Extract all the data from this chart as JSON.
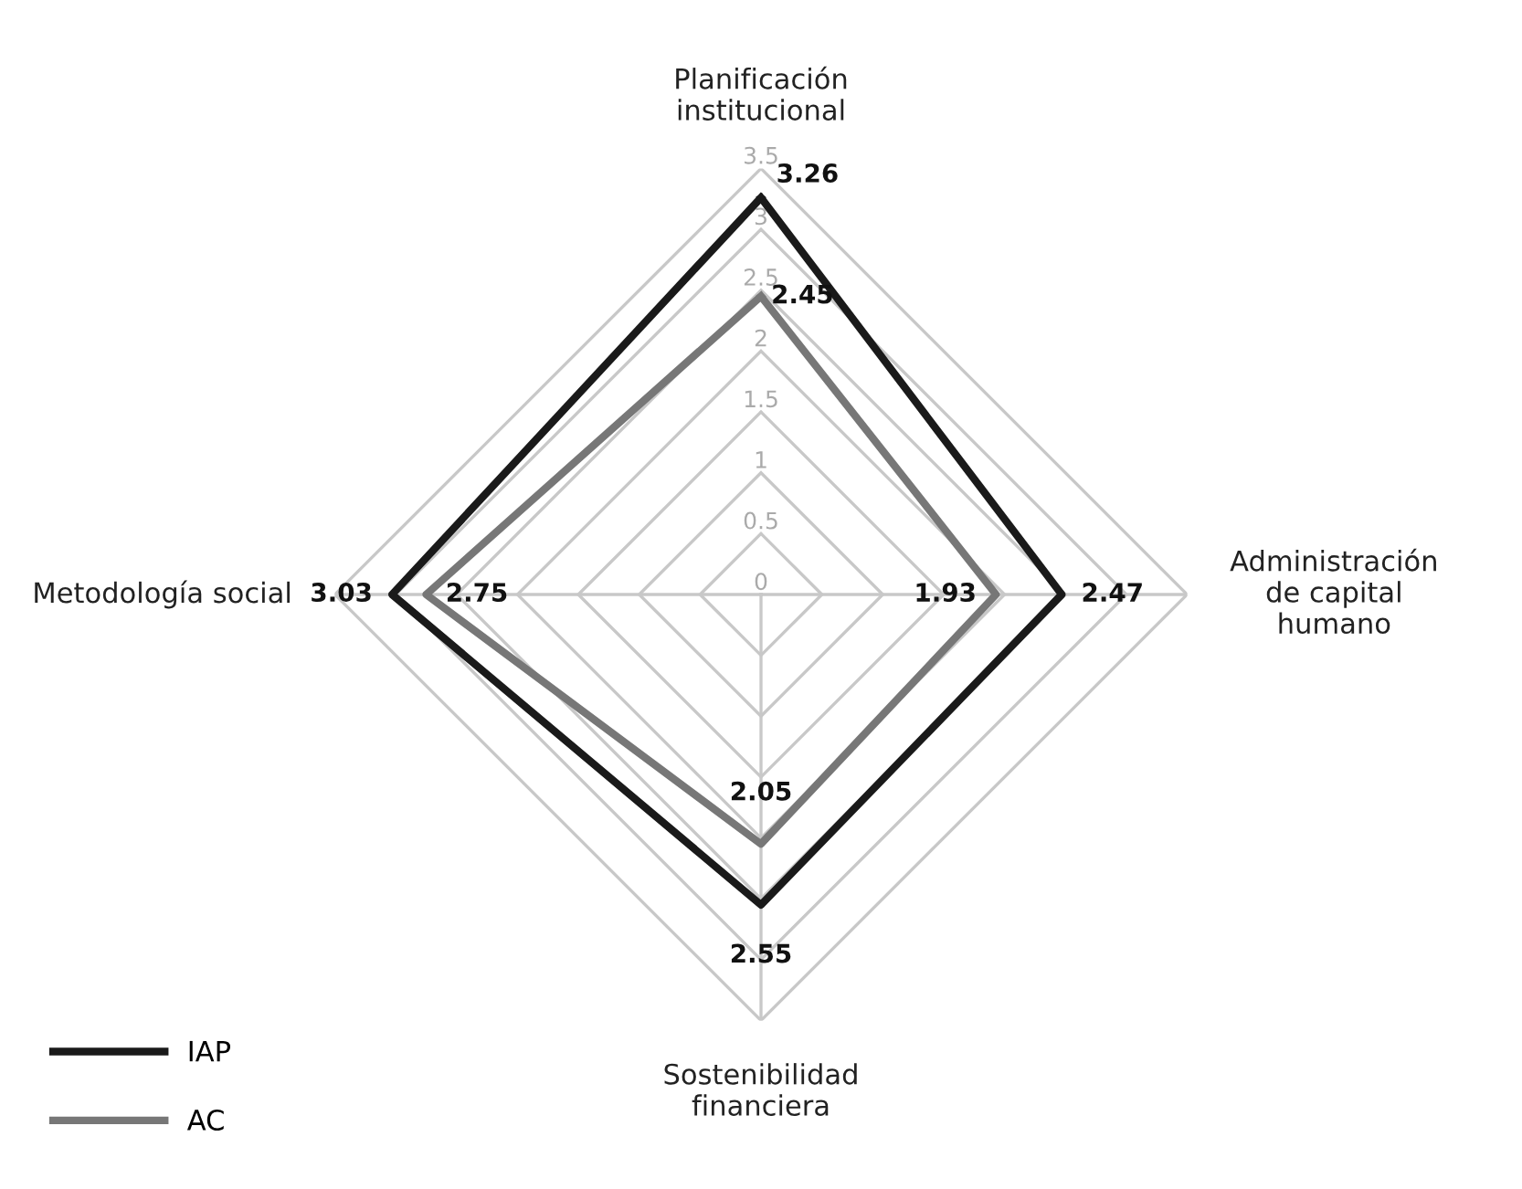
{
  "chart_data": {
    "type": "radar",
    "categories": [
      "Planificación\ninstitucional",
      "Administración\nde capital\nhumano",
      "Sostenibilidad\nfinanciera",
      "Metodología social"
    ],
    "series": [
      {
        "name": "IAP",
        "color": "#1a1a1a",
        "values": [
          3.26,
          2.47,
          2.55,
          3.03
        ]
      },
      {
        "name": "AC",
        "color": "#777777",
        "values": [
          2.45,
          1.93,
          2.05,
          2.75
        ]
      }
    ],
    "ylim": [
      0,
      3.5
    ],
    "yticks": [
      0,
      0.5,
      1,
      1.5,
      2,
      2.5,
      3,
      3.5
    ],
    "grid": true,
    "data_labels": true,
    "legend": "bottom left",
    "marker": "none",
    "line_style": "solid"
  }
}
